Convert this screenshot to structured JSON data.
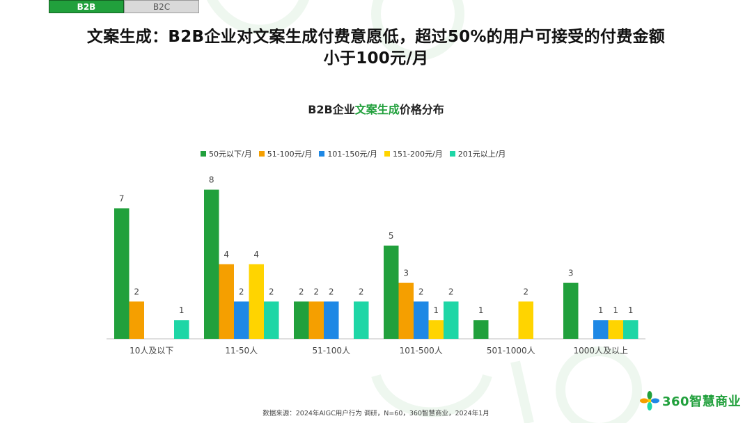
{
  "tabs": {
    "b2b": "B2B",
    "b2c": "B2C"
  },
  "title_line1": "文案生成：B2B企业对文案生成付费意愿低，超过50%的用户可接受的付费金额",
  "title_line2": "小于100元/月",
  "footer": "数据来源：2024年AIGC用户行为 调研，N=60，360智慧商业，2024年1月",
  "logo_text": "360智慧商业",
  "chart_data": {
    "type": "bar",
    "title_parts": [
      "B2B企业",
      "文案生成",
      "价格分布"
    ],
    "title_highlight_color": "#21a03c",
    "categories": [
      "10人及以下",
      "11-50人",
      "51-100人",
      "101-500人",
      "501-1000人",
      "1000人及以上"
    ],
    "series": [
      {
        "name": "50元以下/月",
        "color": "#21a03c",
        "values": [
          7,
          8,
          2,
          5,
          1,
          3
        ]
      },
      {
        "name": "51-100元/月",
        "color": "#f59f00",
        "values": [
          2,
          4,
          2,
          3,
          null,
          null
        ]
      },
      {
        "name": "101-150元/月",
        "color": "#1e88e5",
        "values": [
          null,
          2,
          2,
          2,
          null,
          1
        ]
      },
      {
        "name": "151-200元/月",
        "color": "#ffd400",
        "values": [
          null,
          4,
          null,
          1,
          2,
          1
        ]
      },
      {
        "name": "201元以上/月",
        "color": "#1ed6a6",
        "values": [
          1,
          2,
          2,
          2,
          null,
          1
        ]
      }
    ],
    "ylim": [
      0,
      8
    ],
    "legend_position": "top",
    "grid": false
  }
}
